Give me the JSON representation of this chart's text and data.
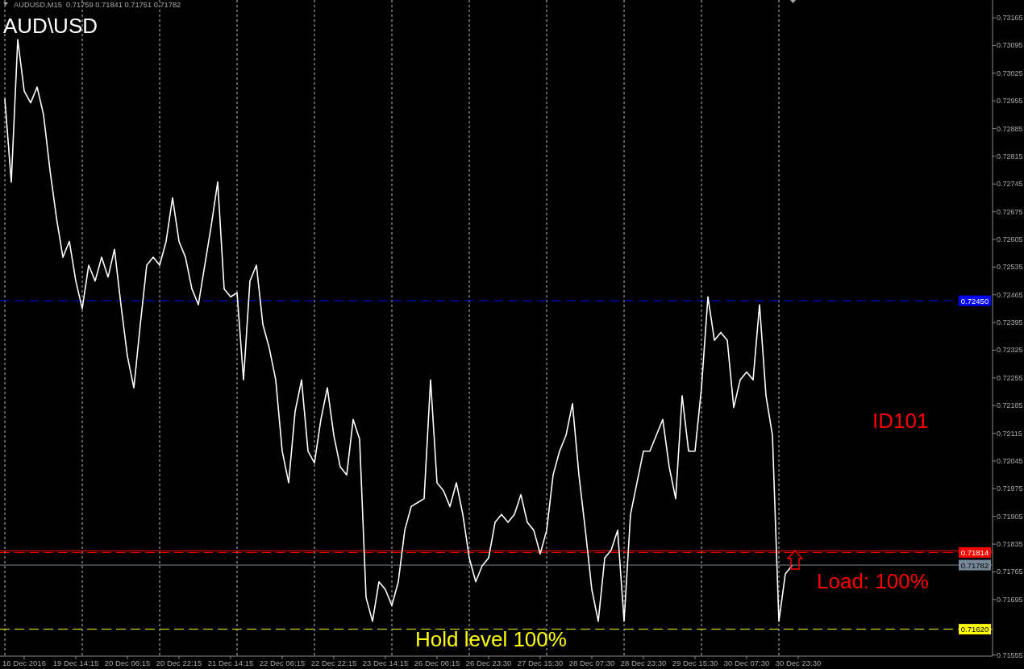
{
  "chart_data": {
    "type": "line",
    "title": "AUD\\USD",
    "subtitle": "AUDUSD,M15  0.71759 0.71841 0.71751 0.71782",
    "annotations": [
      "ID101",
      "Load: 100%",
      "Hold level 100%"
    ],
    "categories": [
      null,
      null,
      null,
      "16 Dec 2016",
      null,
      null,
      null,
      null,
      null,
      null,
      null,
      "19 Dec 14:15",
      null,
      null,
      null,
      null,
      null,
      null,
      null,
      "20 Dec 06:15",
      null,
      null,
      null,
      null,
      null,
      null,
      null,
      "20 Dec 22:15",
      null,
      null,
      null,
      null,
      null,
      null,
      null,
      "21 Dec 14:15",
      null,
      null,
      null,
      null,
      null,
      null,
      null,
      "22 Dec 06:15",
      null,
      null,
      null,
      null,
      null,
      null,
      null,
      "22 Dec 22:15",
      null,
      null,
      null,
      null,
      null,
      null,
      null,
      "23 Dec 14:15",
      null,
      null,
      null,
      null,
      null,
      null,
      null,
      "26 Dec 06:15",
      null,
      null,
      null,
      null,
      null,
      null,
      null,
      "26 Dec 23:30",
      null,
      null,
      null,
      null,
      null,
      null,
      null,
      "27 Dec 15:30",
      null,
      null,
      null,
      null,
      null,
      null,
      null,
      "28 Dec 07:30",
      null,
      null,
      null,
      null,
      null,
      null,
      null,
      "28 Dec 23:30",
      null,
      null,
      null,
      null,
      null,
      null,
      null,
      "29 Dec 15:30",
      null,
      null,
      null,
      null,
      null,
      null,
      null,
      "30 Dec 07:30",
      null,
      null,
      null,
      null,
      null,
      null,
      null,
      "30 Dec 23:30",
      null,
      null,
      null,
      null,
      null,
      null,
      null,
      null,
      null,
      null,
      null,
      null,
      null,
      null,
      null,
      null,
      null,
      null,
      null,
      null,
      null,
      null,
      null,
      null,
      null,
      null,
      null,
      null,
      null,
      null
    ],
    "series": [
      {
        "color": "#ffffff",
        "values": [
          0.7296,
          0.7275,
          0.7311,
          0.7298,
          0.7295,
          0.7299,
          0.7292,
          0.7278,
          0.7266,
          0.7256,
          0.726,
          0.725,
          0.7243,
          0.7254,
          0.725,
          0.7256,
          0.7251,
          0.7258,
          0.7244,
          0.7231,
          0.7223,
          0.7239,
          0.7254,
          0.7256,
          0.7254,
          0.726,
          0.7271,
          0.726,
          0.7256,
          0.7248,
          0.7244,
          0.7254,
          0.7264,
          0.7275,
          0.7248,
          0.7246,
          0.7247,
          0.7225,
          0.725,
          0.7254,
          0.7239,
          0.7233,
          0.7225,
          0.7207,
          0.7199,
          0.7217,
          0.7225,
          0.7207,
          0.7204,
          0.7215,
          0.7223,
          0.7211,
          0.7203,
          0.7201,
          0.7215,
          0.721,
          0.717,
          0.7164,
          0.7174,
          0.7172,
          0.7168,
          0.7174,
          0.7187,
          0.7193,
          0.7194,
          0.7195,
          0.7225,
          0.7199,
          0.7197,
          0.7193,
          0.7199,
          0.7191,
          0.718,
          0.7174,
          0.7178,
          0.718,
          0.7189,
          0.7191,
          0.7189,
          0.7191,
          0.7196,
          0.7189,
          0.7187,
          0.7181,
          0.7187,
          0.7201,
          0.7207,
          0.7211,
          0.7219,
          0.7201,
          0.7187,
          0.7172,
          0.7164,
          0.718,
          0.7182,
          0.7187,
          0.7164,
          0.7191,
          0.7199,
          0.7207,
          0.7207,
          0.7211,
          0.7215,
          0.7203,
          0.7195,
          0.7221,
          0.7207,
          0.7207,
          0.7223,
          0.7246,
          0.7235,
          0.7237,
          0.7235,
          0.7218,
          0.7225,
          0.7227,
          0.7225,
          0.7244,
          0.7221,
          0.7211,
          0.7164,
          0.7176,
          0.7178,
          null,
          null,
          null,
          null,
          null,
          null,
          null,
          null,
          null,
          null,
          null,
          null,
          null,
          null,
          null,
          null,
          null,
          null,
          null,
          null,
          null,
          null,
          null,
          null,
          null,
          null,
          null,
          null,
          null,
          null,
          null
        ]
      }
    ],
    "ylim": [
      0.71552,
      0.7321
    ],
    "yticks": [
      0.73165,
      0.73095,
      0.73025,
      0.72955,
      0.72885,
      0.72815,
      0.72745,
      0.72675,
      0.72605,
      0.72535,
      0.72465,
      0.72395,
      0.72325,
      0.72255,
      0.72185,
      0.72115,
      0.72045,
      0.71975,
      0.71905,
      0.71835,
      0.71765,
      0.71695,
      0.71555
    ],
    "grid": "x",
    "ref_lines": [
      {
        "axis": "y",
        "value": 0.7245,
        "label": "0.72450",
        "color": "#0000ff",
        "line_style": "dashed"
      },
      {
        "axis": "y",
        "value": 0.71818,
        "color": "#ff0000",
        "line_style": "solid"
      },
      {
        "axis": "y",
        "value": 0.71814,
        "label": "0.71814",
        "color": "#ff0000",
        "line_style": "dashed"
      },
      {
        "axis": "y",
        "value": 0.71782,
        "label": "0.71782",
        "color": "#778899",
        "line_style": "solid"
      },
      {
        "axis": "y",
        "value": 0.7162,
        "label": "0.71620",
        "color": "#ffff00",
        "line_style": "dashed"
      }
    ]
  }
}
